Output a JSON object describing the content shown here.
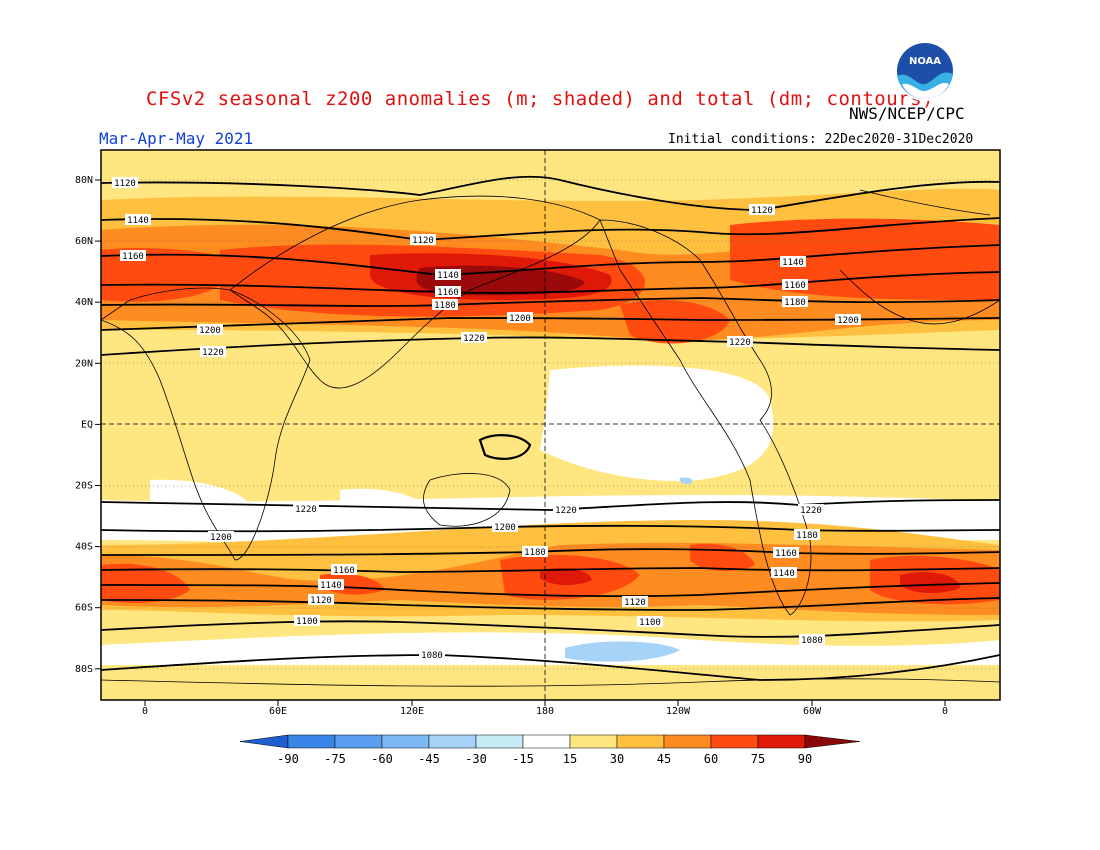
{
  "header": {
    "title": "CFSv2 seasonal z200 anomalies (m; shaded) and total (dm; contours)",
    "agency": "NWS/NCEP/CPC",
    "period": "Mar-Apr-May 2021",
    "initial_conditions": "Initial conditions: 22Dec2020-31Dec2020",
    "logo_text": "NOAA",
    "logo_icon": "noaa-logo-icon"
  },
  "map": {
    "lat_labels": [
      "80N",
      "60N",
      "40N",
      "20N",
      "EQ",
      "20S",
      "40S",
      "60S",
      "80S"
    ],
    "lon_labels": [
      "0",
      "60E",
      "120E",
      "180",
      "120W",
      "60W",
      "0"
    ],
    "contour_labels": [
      "1120",
      "1140",
      "1160",
      "1120",
      "1140",
      "1160",
      "1180",
      "1200",
      "1220",
      "1120",
      "1140",
      "1160",
      "1180",
      "1200",
      "1220",
      "1200",
      "1220",
      "1220",
      "1220",
      "1220",
      "1200",
      "1200",
      "1180",
      "1180",
      "1160",
      "1160",
      "1140",
      "1140",
      "1120",
      "1120",
      "1100",
      "1100",
      "1080",
      "1080"
    ]
  },
  "colorbar": {
    "ticks": [
      "-90",
      "-75",
      "-60",
      "-45",
      "-30",
      "-15",
      "15",
      "30",
      "45",
      "60",
      "75",
      "90"
    ],
    "colors": [
      "#1e6fe0",
      "#3a86e8",
      "#5a9ef0",
      "#7eb8f4",
      "#a6d4f8",
      "#c6ecf6",
      "#ffffff",
      "#ffe680",
      "#ffc040",
      "#ff8c20",
      "#ff4a10",
      "#e01808",
      "#9a0a0a"
    ],
    "low_arrow_color": "#1e5fd0",
    "high_arrow_color": "#8a0808"
  }
}
